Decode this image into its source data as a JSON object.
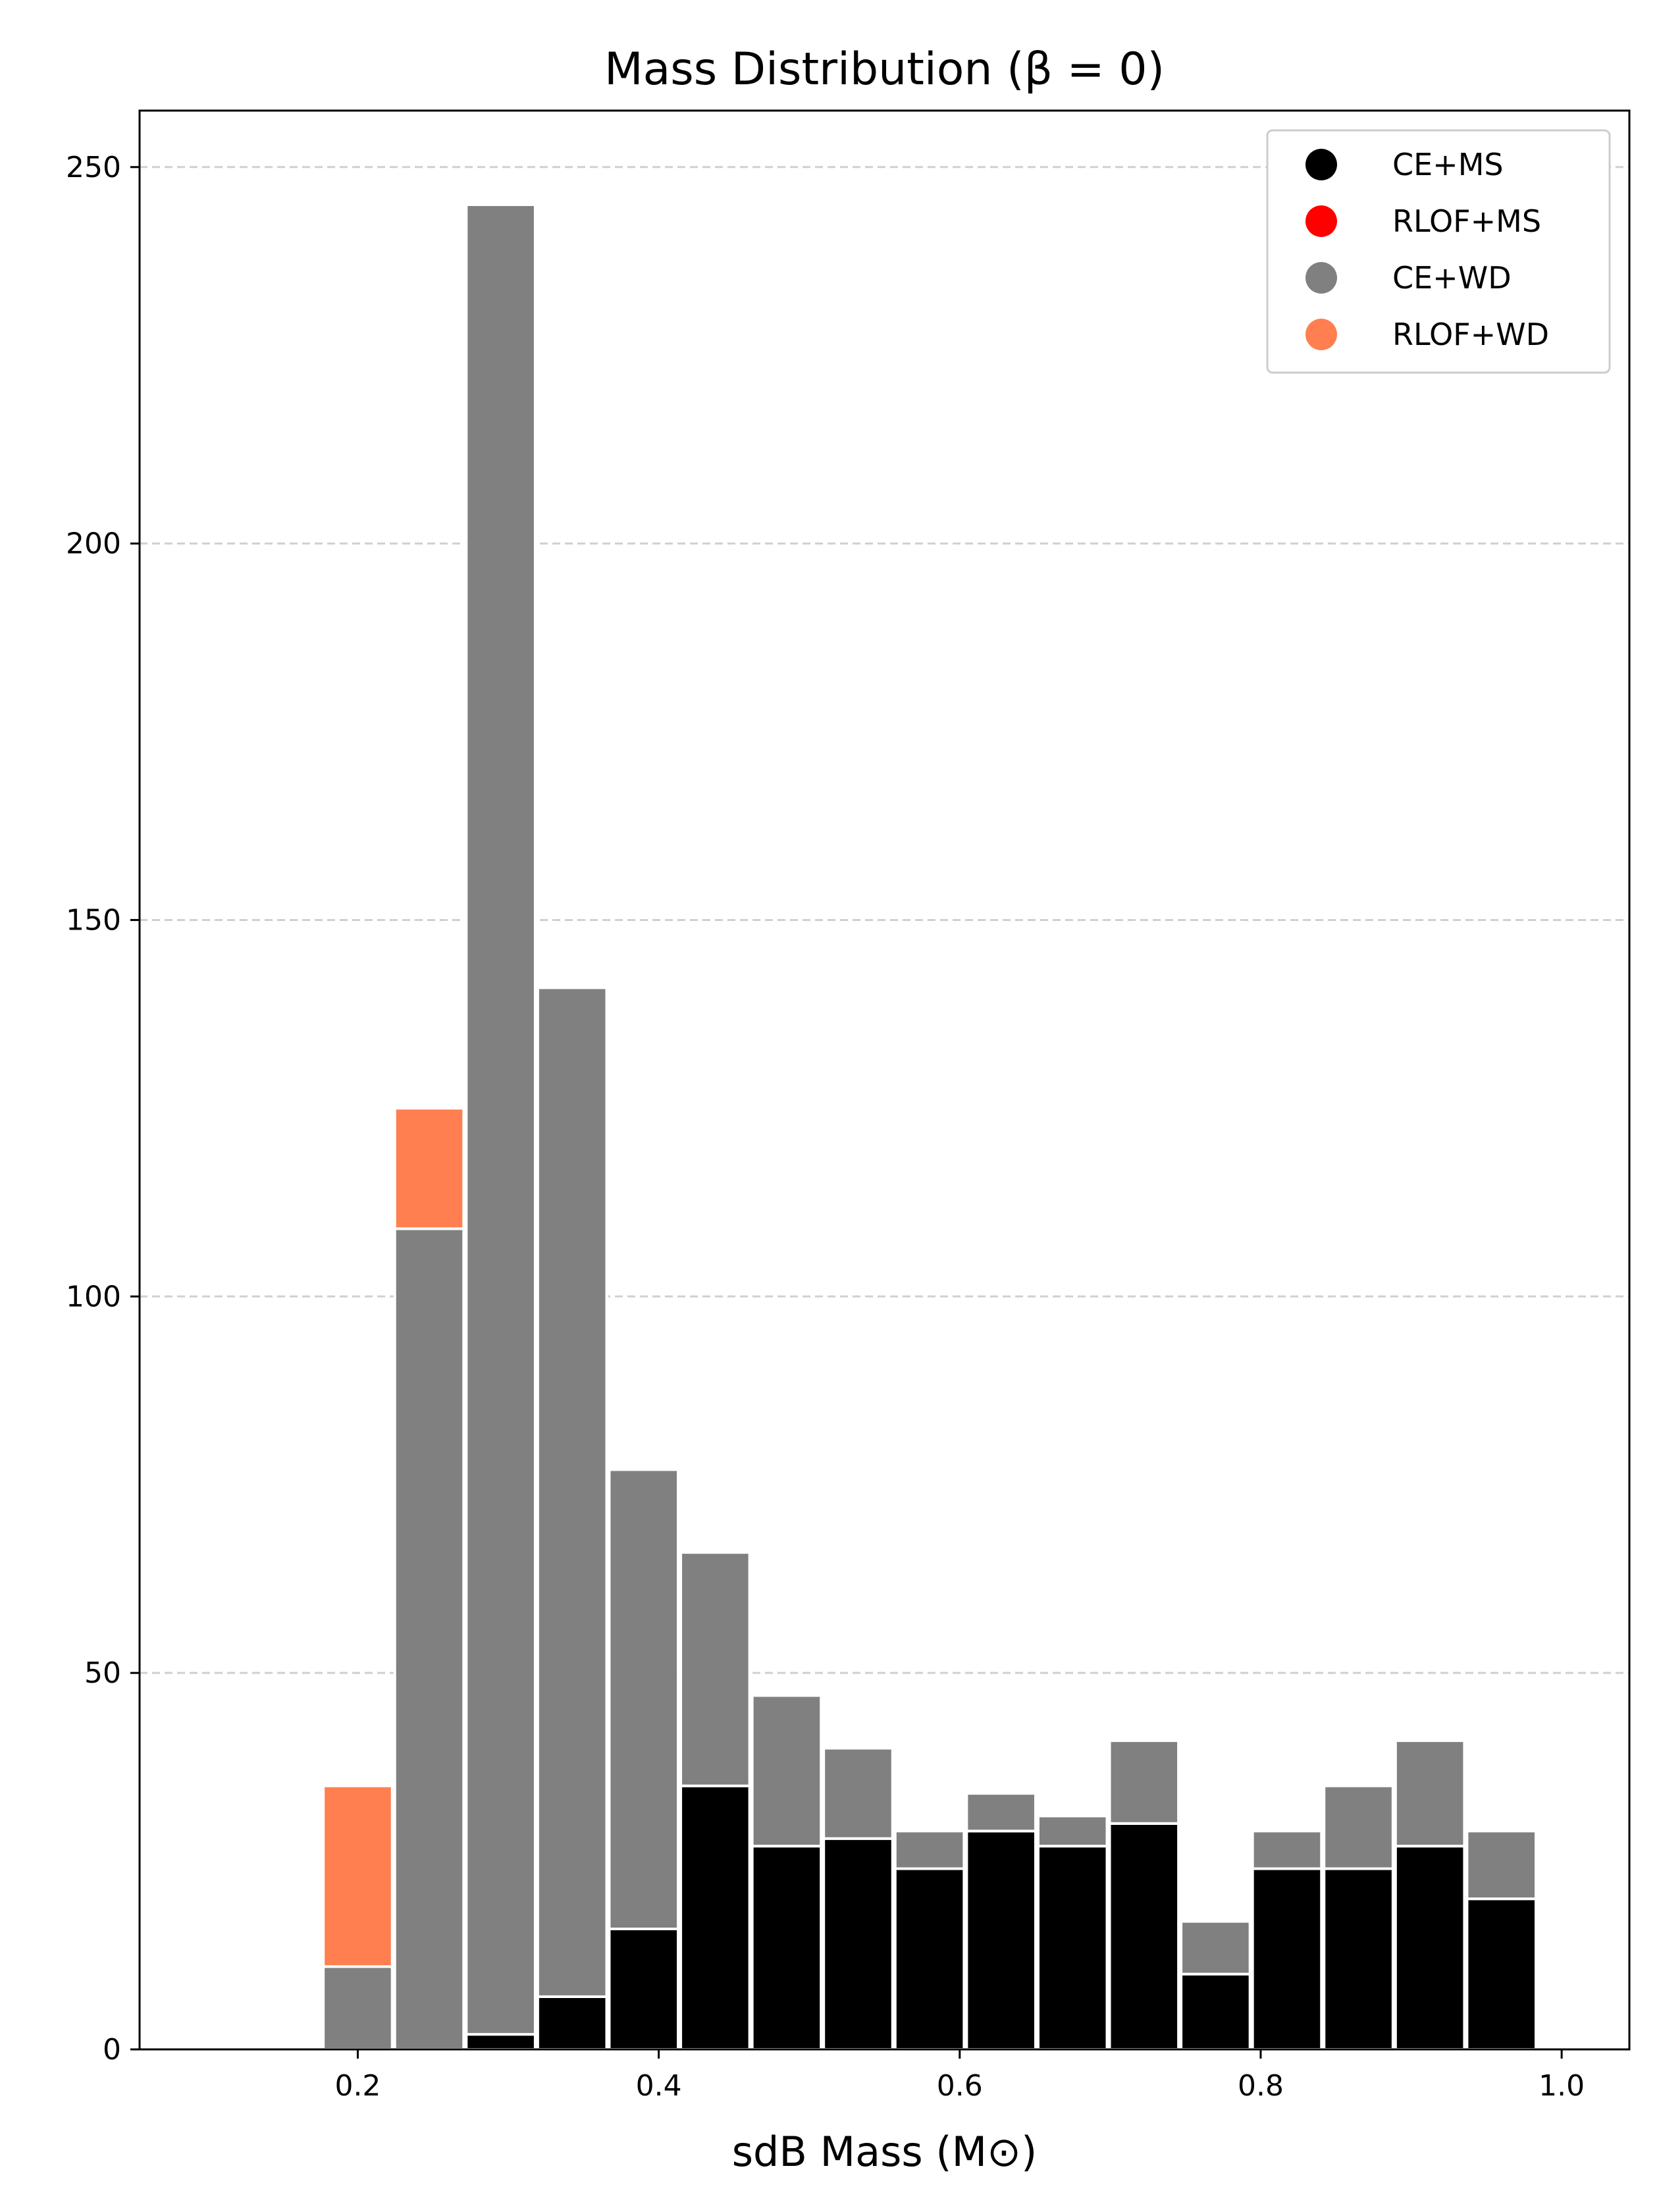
{
  "chart_data": {
    "type": "bar",
    "stacked": true,
    "title": "Mass Distribution (β = 0)",
    "xlabel": "sdB Mass (M⊙)",
    "ylabel": "",
    "xlim": [
      0.055,
      1.045
    ],
    "ylim": [
      0,
      257.5
    ],
    "bin_width": 0.0475,
    "x": [
      0.2,
      0.2475,
      0.295,
      0.3425,
      0.39,
      0.4375,
      0.485,
      0.5325,
      0.58,
      0.6275,
      0.675,
      0.7225,
      0.77,
      0.8175,
      0.865,
      0.9125,
      0.96
    ],
    "series": [
      {
        "name": "CE+MS",
        "color": "#000000",
        "values": [
          0,
          0,
          2,
          7,
          16,
          35,
          27,
          28,
          24,
          29,
          27,
          30,
          10,
          24,
          24,
          27,
          20
        ]
      },
      {
        "name": "RLOF+MS",
        "color": "#ff0000",
        "values": [
          0,
          0,
          0,
          0,
          0,
          0,
          0,
          0,
          0,
          0,
          0,
          0,
          0,
          0,
          0,
          0,
          0
        ]
      },
      {
        "name": "CE+WD",
        "color": "#808080",
        "values": [
          11,
          109,
          243,
          134,
          61,
          31,
          20,
          12,
          5,
          5,
          4,
          11,
          7,
          5,
          11,
          14,
          9
        ]
      },
      {
        "name": "RLOF+WD",
        "color": "#ff7f50",
        "values": [
          24,
          16,
          0,
          0,
          0,
          0,
          0,
          0,
          0,
          0,
          0,
          0,
          0,
          0,
          0,
          0,
          0
        ]
      }
    ],
    "xticks": [
      0.2,
      0.4,
      0.6,
      0.8,
      1.0
    ],
    "xtick_labels": [
      "0.2",
      "0.4",
      "0.6",
      "0.8",
      "1.0"
    ],
    "yticks": [
      0,
      50,
      100,
      150,
      200,
      250
    ],
    "ytick_labels": [
      "0",
      "50",
      "100",
      "150",
      "200",
      "250"
    ],
    "grid": "y-dashed",
    "legend_position": "top-right"
  }
}
